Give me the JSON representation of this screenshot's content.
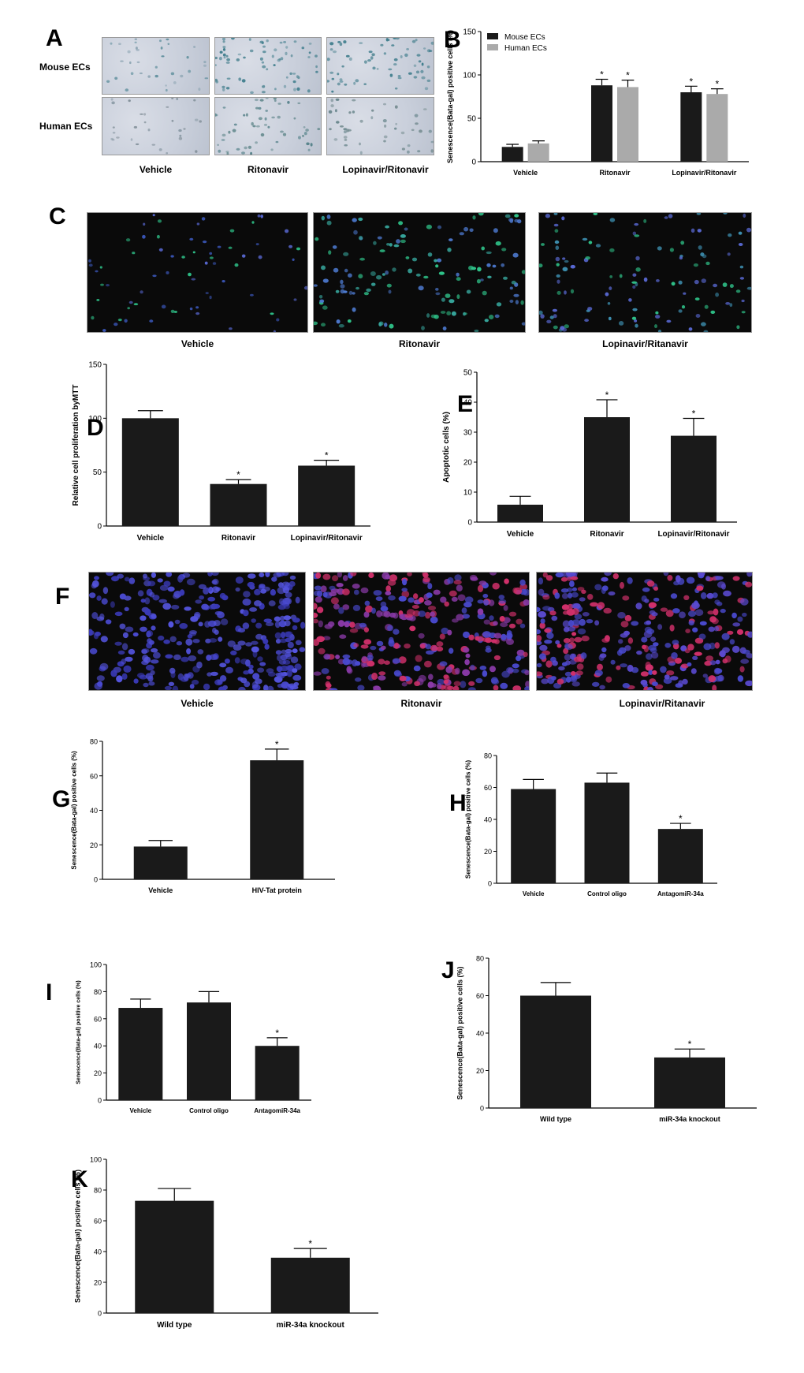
{
  "panels": {
    "A": {
      "letter": "A",
      "rows": [
        "Mouse  ECs",
        "Human ECs"
      ],
      "cols": [
        "Vehicle",
        "Ritonavir",
        "Lopinavir/Ritonavir"
      ]
    },
    "C": {
      "letter": "C",
      "cols": [
        "Vehicle",
        "Ritonavir",
        "Lopinavir/Ritanavir"
      ]
    },
    "F": {
      "letter": "F",
      "cols": [
        "Vehicle",
        "Ritonavir",
        "Lopinavir/Ritanavir"
      ]
    }
  },
  "colors": {
    "bar_dark": "#1a1a1a",
    "bar_gray": "#aaaaaa",
    "sa_stain": "#5f8f9c",
    "fl_green": "#2fc48a",
    "fl_blue": "#4a4ad0",
    "fl_red": "#d0306a"
  },
  "chart_data": [
    {
      "id": "B",
      "letter": "B",
      "type": "bar",
      "categories": [
        "Vehicle",
        "Ritonavir",
        "Lopinavir/Ritonavir"
      ],
      "series": [
        {
          "name": "Mouse ECs",
          "values": [
            17,
            88,
            80
          ],
          "errors": [
            3,
            7,
            7
          ],
          "sig": [
            false,
            true,
            true
          ]
        },
        {
          "name": "Human ECs",
          "values": [
            21,
            86,
            78
          ],
          "errors": [
            3,
            8,
            6
          ],
          "sig": [
            false,
            true,
            true
          ]
        }
      ],
      "ylabel": "Senescence(Bata-gal) positive cells (%)",
      "ylim": [
        0,
        150
      ],
      "yticks": [
        0,
        50,
        100,
        150
      ],
      "legend": "top-left"
    },
    {
      "id": "D",
      "letter": "D",
      "type": "bar",
      "categories": [
        "Vehicle",
        "Ritonavir",
        "Lopinavir/Ritonavir"
      ],
      "series": [
        {
          "values": [
            100,
            39,
            56
          ],
          "errors": [
            7,
            4,
            5
          ],
          "sig": [
            false,
            true,
            true
          ]
        }
      ],
      "ylabel": "Relative cell proliferation byMTT",
      "ylim": [
        0,
        150
      ],
      "yticks": [
        0,
        50,
        100,
        150
      ]
    },
    {
      "id": "E",
      "letter": "E",
      "type": "bar",
      "categories": [
        "Vehicle",
        "Ritonavir",
        "Lopinavir/Ritonavir"
      ],
      "series": [
        {
          "values": [
            5.8,
            35,
            28.8
          ],
          "errors": [
            2.8,
            5.8,
            5.8
          ],
          "sig": [
            false,
            true,
            true
          ]
        }
      ],
      "ylabel": "Apoptotic cells (%)",
      "ylim": [
        0,
        50
      ],
      "yticks": [
        0,
        10,
        20,
        30,
        40,
        50
      ]
    },
    {
      "id": "G",
      "letter": "G",
      "type": "bar",
      "categories": [
        "Vehicle",
        "HIV-Tat protein"
      ],
      "series": [
        {
          "values": [
            19,
            69
          ],
          "errors": [
            3.5,
            6.5
          ],
          "sig": [
            false,
            true
          ]
        }
      ],
      "ylabel": "Senescence(Bata-gal) positive cells (%)",
      "ylim": [
        0,
        80
      ],
      "yticks": [
        0,
        20,
        40,
        60,
        80
      ]
    },
    {
      "id": "H",
      "letter": "H",
      "type": "bar",
      "categories": [
        "Vehicle",
        "Control oligo",
        "AntagomiR-34a"
      ],
      "series": [
        {
          "values": [
            59,
            63,
            34
          ],
          "errors": [
            6,
            6,
            3.5
          ],
          "sig": [
            false,
            false,
            true
          ]
        }
      ],
      "ylabel": "Senescence(Bata-gal) positive cells (%)",
      "ylim": [
        0,
        80
      ],
      "yticks": [
        0,
        20,
        40,
        60,
        80
      ]
    },
    {
      "id": "I",
      "letter": "I",
      "type": "bar",
      "categories": [
        "Vehicle",
        "Control oligo",
        "AntagomiR-34a"
      ],
      "series": [
        {
          "values": [
            68,
            72,
            40
          ],
          "errors": [
            6.5,
            8,
            6
          ],
          "sig": [
            false,
            false,
            true
          ]
        }
      ],
      "ylabel": "Senescence(Bata-gal) positive cells (%)",
      "ylim": [
        0,
        100
      ],
      "yticks": [
        0,
        20,
        40,
        60,
        80,
        100
      ]
    },
    {
      "id": "J",
      "letter": "J",
      "type": "bar",
      "categories": [
        "Wild type",
        "miR-34a knockout"
      ],
      "series": [
        {
          "values": [
            60,
            27
          ],
          "errors": [
            7,
            4.5
          ],
          "sig": [
            false,
            true
          ]
        }
      ],
      "ylabel": "Senescence(Bata-gal) positive cells (%)",
      "ylim": [
        0,
        80
      ],
      "yticks": [
        0,
        20,
        40,
        60,
        80
      ]
    },
    {
      "id": "K",
      "letter": "K",
      "type": "bar",
      "categories": [
        "Wild type",
        "miR-34a knockout"
      ],
      "series": [
        {
          "values": [
            73,
            36
          ],
          "errors": [
            8,
            6
          ],
          "sig": [
            false,
            true
          ]
        }
      ],
      "ylabel": "Senescence(Bata-gal) positive cells (%)",
      "ylim": [
        0,
        100
      ],
      "yticks": [
        0,
        20,
        40,
        60,
        80,
        100
      ]
    }
  ]
}
